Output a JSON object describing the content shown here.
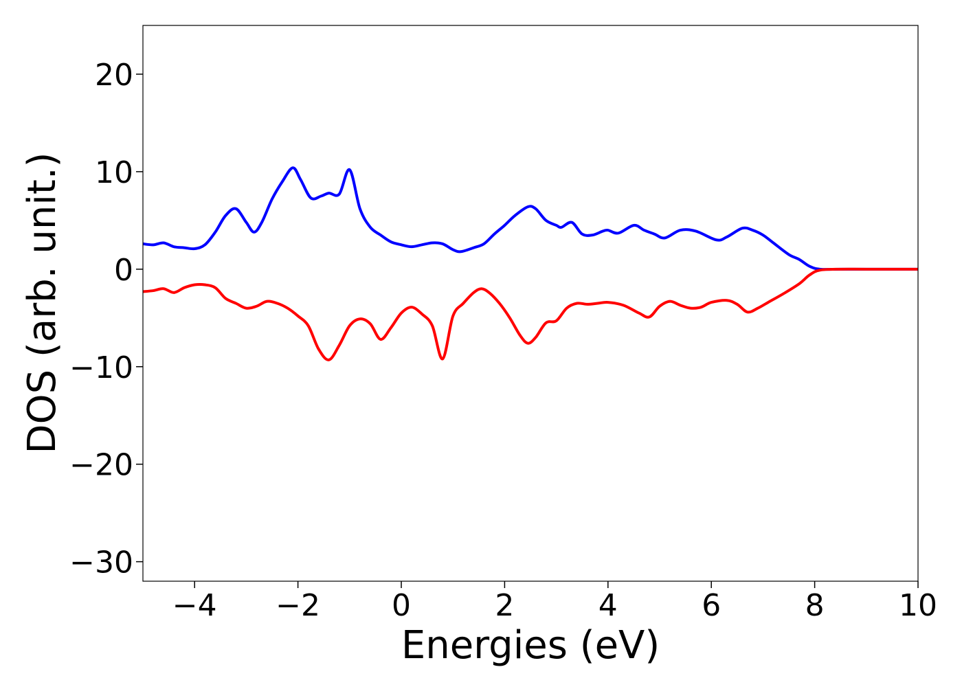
{
  "chart_data": {
    "type": "line",
    "title": "",
    "xlabel": "Energies (eV)",
    "ylabel": "DOS (arb. unit.)",
    "xlim": [
      -5,
      10
    ],
    "ylim": [
      -32,
      25
    ],
    "xticks": [
      -4,
      -2,
      0,
      2,
      4,
      6,
      8,
      10
    ],
    "xtick_labels": [
      "−4",
      "−2",
      "0",
      "2",
      "4",
      "6",
      "8",
      "10"
    ],
    "yticks": [
      -30,
      -20,
      -10,
      0,
      10,
      20
    ],
    "ytick_labels": [
      "−30",
      "−20",
      "−10",
      "0",
      "10",
      "20"
    ],
    "grid": false,
    "legend": "none",
    "series": [
      {
        "color": "#0000ff",
        "x": [
          -5.0,
          -4.8,
          -4.6,
          -4.4,
          -4.2,
          -4.0,
          -3.8,
          -3.6,
          -3.4,
          -3.2,
          -3.0,
          -2.85,
          -2.7,
          -2.5,
          -2.3,
          -2.1,
          -1.95,
          -1.75,
          -1.55,
          -1.4,
          -1.2,
          -1.0,
          -0.8,
          -0.6,
          -0.4,
          -0.2,
          0.0,
          0.2,
          0.4,
          0.6,
          0.8,
          1.0,
          1.15,
          1.4,
          1.6,
          1.8,
          2.0,
          2.2,
          2.45,
          2.6,
          2.8,
          3.0,
          3.1,
          3.3,
          3.5,
          3.7,
          3.9,
          4.0,
          4.2,
          4.5,
          4.7,
          4.9,
          5.1,
          5.4,
          5.7,
          6.1,
          6.3,
          6.6,
          6.8,
          7.0,
          7.2,
          7.5,
          7.7,
          7.9,
          8.1,
          8.5,
          9.0,
          9.5,
          10.0
        ],
        "y": [
          2.6,
          2.5,
          2.7,
          2.3,
          2.2,
          2.1,
          2.5,
          3.8,
          5.5,
          6.2,
          4.8,
          3.8,
          4.8,
          7.2,
          9.0,
          10.4,
          9.2,
          7.3,
          7.5,
          7.8,
          7.7,
          10.2,
          6.2,
          4.3,
          3.5,
          2.8,
          2.5,
          2.3,
          2.5,
          2.7,
          2.6,
          2.0,
          1.8,
          2.2,
          2.6,
          3.6,
          4.5,
          5.5,
          6.4,
          6.2,
          5.0,
          4.5,
          4.3,
          4.8,
          3.6,
          3.5,
          3.9,
          4.0,
          3.7,
          4.5,
          4.0,
          3.6,
          3.2,
          4.0,
          3.9,
          3.0,
          3.3,
          4.2,
          4.0,
          3.5,
          2.7,
          1.5,
          1.0,
          0.3,
          0.0,
          0.0,
          0.0,
          0.0,
          0.0
        ]
      },
      {
        "color": "#ff0000",
        "x": [
          -5.0,
          -4.8,
          -4.6,
          -4.4,
          -4.2,
          -4.0,
          -3.8,
          -3.6,
          -3.4,
          -3.2,
          -3.0,
          -2.8,
          -2.6,
          -2.4,
          -2.2,
          -2.0,
          -1.8,
          -1.6,
          -1.4,
          -1.2,
          -1.0,
          -0.8,
          -0.6,
          -0.4,
          -0.2,
          0.0,
          0.2,
          0.4,
          0.6,
          0.8,
          1.0,
          1.2,
          1.4,
          1.55,
          1.7,
          1.9,
          2.1,
          2.3,
          2.45,
          2.6,
          2.8,
          3.0,
          3.2,
          3.4,
          3.6,
          3.8,
          4.0,
          4.3,
          4.6,
          4.8,
          5.0,
          5.2,
          5.4,
          5.6,
          5.8,
          6.0,
          6.3,
          6.5,
          6.7,
          6.9,
          7.1,
          7.4,
          7.7,
          7.9,
          8.1,
          8.5,
          9.0,
          10.0
        ],
        "y": [
          -2.3,
          -2.2,
          -2.0,
          -2.4,
          -1.9,
          -1.6,
          -1.6,
          -1.9,
          -3.0,
          -3.5,
          -4.0,
          -3.8,
          -3.3,
          -3.5,
          -4.0,
          -4.8,
          -5.8,
          -8.2,
          -9.3,
          -7.8,
          -5.8,
          -5.1,
          -5.6,
          -7.2,
          -6.0,
          -4.5,
          -3.9,
          -4.6,
          -5.8,
          -9.2,
          -4.8,
          -3.5,
          -2.4,
          -2.0,
          -2.4,
          -3.5,
          -5.0,
          -6.8,
          -7.6,
          -7.0,
          -5.5,
          -5.3,
          -4.0,
          -3.5,
          -3.6,
          -3.5,
          -3.4,
          -3.7,
          -4.5,
          -4.9,
          -3.8,
          -3.3,
          -3.7,
          -4.0,
          -3.9,
          -3.4,
          -3.2,
          -3.6,
          -4.4,
          -4.0,
          -3.4,
          -2.5,
          -1.5,
          -0.6,
          -0.1,
          0.0,
          0.0,
          0.0
        ]
      }
    ]
  }
}
